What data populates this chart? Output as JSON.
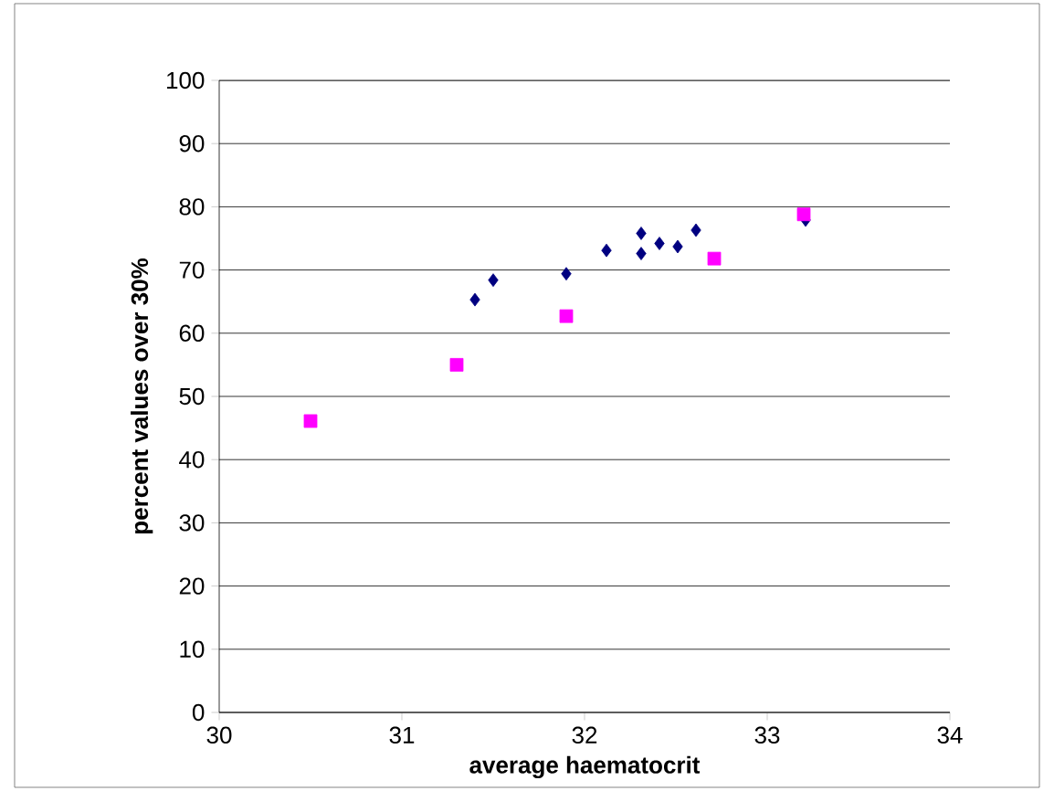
{
  "chart_data": {
    "type": "scatter",
    "xlabel": "average haematocrit",
    "ylabel": "percent values over 30%",
    "xlim": [
      30,
      34
    ],
    "xticks": [
      30,
      31,
      32,
      33,
      34
    ],
    "ylim": [
      0,
      100
    ],
    "yticks": [
      0,
      10,
      20,
      30,
      40,
      50,
      60,
      70,
      80,
      90,
      100
    ],
    "grid": "y",
    "series": [
      {
        "color": "#000080",
        "marker": "diamond",
        "x": [
          31.4,
          31.5,
          31.9,
          32.12,
          32.31,
          32.31,
          32.41,
          32.51,
          32.61,
          33.21
        ],
        "values": [
          65.3,
          68.4,
          69.4,
          73.1,
          75.8,
          72.6,
          74.2,
          73.7,
          76.3,
          77.9
        ]
      },
      {
        "color": "#ff00ff",
        "marker": "square",
        "x": [
          30.5,
          31.3,
          31.9,
          32.71,
          33.2
        ],
        "values": [
          46.1,
          55.0,
          62.7,
          71.8,
          78.8
        ]
      }
    ]
  }
}
